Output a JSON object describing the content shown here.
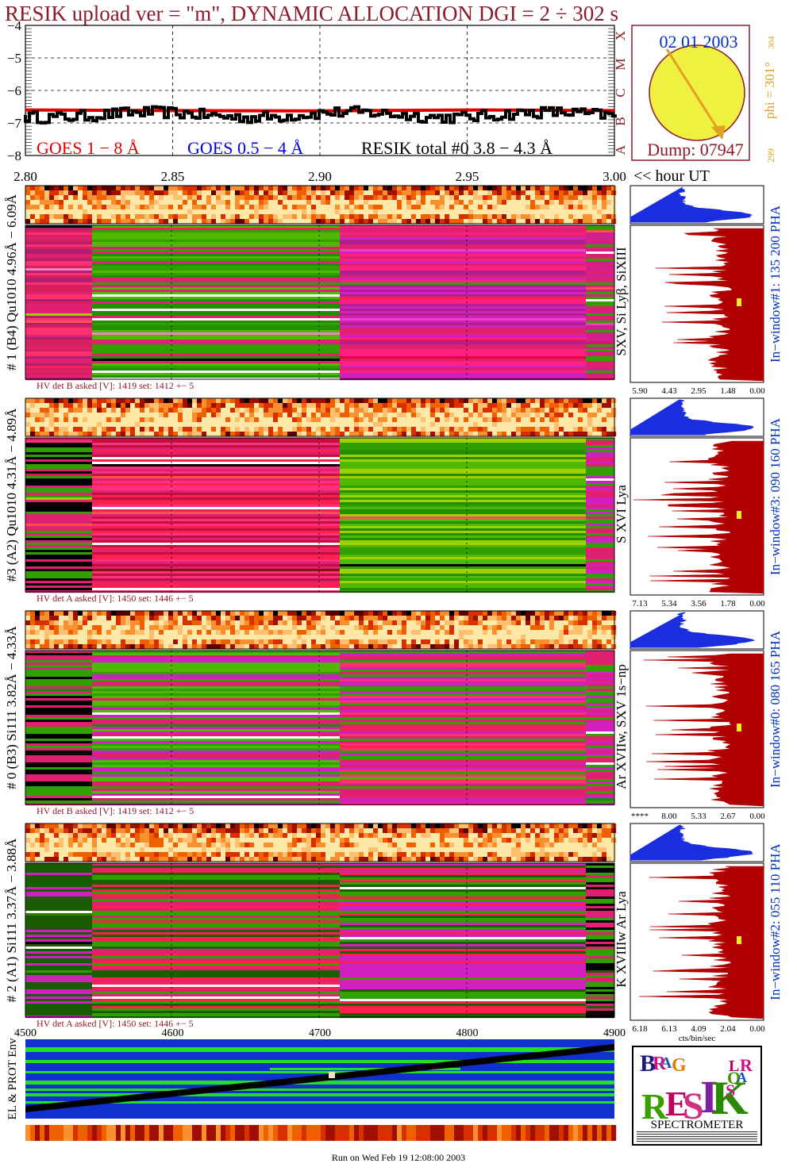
{
  "title": "RESIK upload ver = \"m\", DYNAMIC ALLOCATION  DGI =   2 ÷ 302 s",
  "colors": {
    "title": "#8b1a2b",
    "goes_long": "#e00000",
    "goes_short": "#0000e0",
    "resik": "#000000",
    "spectrum": "#b00000",
    "pha": "#1a2ee0",
    "sun": "#f0f040",
    "sun_label": "#0030c0",
    "orange": "#e0a020"
  },
  "lightcurve": {
    "yticks": [
      "−4",
      "−5",
      "−6",
      "−7",
      "−8"
    ],
    "xticks": [
      "2.80",
      "2.85",
      "2.90",
      "2.95",
      "3.00"
    ],
    "x_axis_suffix": "<< hour UT",
    "legend_goes_long": "GOES 1 − 8 Å",
    "legend_goes_short": "GOES 0.5 − 4 Å",
    "legend_resik": "RESIK total #0  3.8 − 4.3 Å",
    "goes_classes": [
      "X",
      "M",
      "C",
      "B",
      "A"
    ]
  },
  "chart_data": {
    "type": "line",
    "title": "RESIK upload ver = \"m\", DYNAMIC ALLOCATION  DGI =   2 ÷ 302 s",
    "xlabel": "<< hour UT",
    "ylabel": "",
    "xlim": [
      2.8,
      3.0
    ],
    "ylim": [
      -8,
      -4
    ],
    "grid": true,
    "legend": "bottom",
    "series": [
      {
        "name": "GOES 1 − 8 Å",
        "x": [
          2.8,
          2.85,
          2.9,
          2.95,
          3.0
        ],
        "values": [
          -6.6,
          -6.62,
          -6.63,
          -6.6,
          -6.62
        ]
      },
      {
        "name": "RESIK total #0  3.8 − 4.3 Å",
        "x": [
          2.8,
          2.825,
          2.85,
          2.875,
          2.9,
          2.925,
          2.95,
          2.975,
          3.0
        ],
        "values": [
          -6.7,
          -6.8,
          -6.75,
          -6.85,
          -6.8,
          -6.75,
          -6.8,
          -6.75,
          -6.7
        ]
      }
    ]
  },
  "sun": {
    "date": "02 01 2003",
    "dump": "Dump: 07947",
    "phi": "phi = 301°",
    "phi_sub": "304",
    "phi_low": "299"
  },
  "channels": [
    {
      "label": "# 1 (B4) Qu1010 4.96Å − 6.09Å",
      "lines": "SXV, Si Lyβ, SiXIII",
      "hv": "HV det B asked [V]:  1419 set:  1412 +−    5",
      "window": "In−window#1:  135 200 PHA",
      "xticks": [
        "5.90",
        "4.43",
        "2.95",
        "1.48",
        "0.00"
      ]
    },
    {
      "label": "#3 (A2) Qu1010  4.31Å − 4.89Å",
      "lines": "S XVI Lya",
      "hv": "HV det A asked [V]:  1450 set:  1446 +−    5",
      "window": "In−window#3:  090 160 PHA",
      "xticks": [
        "7.13",
        "5.34",
        "3.56",
        "1.78",
        "0.00"
      ]
    },
    {
      "label": "# 0 (B3) Si111  3.82Å − 4.33Å",
      "lines": "Ar XVIIw,  SXV 1s−np",
      "hv": "HV det B asked [V]:  1419 set:  1412 +−    5",
      "window": "In−window#0:  080 165 PHA",
      "xticks": [
        "****",
        "8.00",
        "5.33",
        "2.67",
        "0.00"
      ]
    },
    {
      "label": "# 2 (A1) Si111  3.37Å − 3.88Å",
      "lines": "K XVIIIw  Ar Lya",
      "hv": "HV det A asked [V]:  1450 set:  1446 +−    5",
      "window": "In−window#2:  055 110 PHA",
      "xticks": [
        "6.18",
        "6.13",
        "4.09",
        "2.04",
        "0.00"
      ],
      "xunit": "cts/bin/sec"
    }
  ],
  "env": {
    "label": "EL & PROT Env",
    "xticks": [
      "4500",
      "4600",
      "4700",
      "4800",
      "4900"
    ]
  },
  "logo": {
    "text": "SPECTROMETER",
    "letters": [
      "B",
      "R",
      "A",
      "G",
      "R",
      "E",
      "S",
      "I",
      "K",
      "S",
      "O",
      "L",
      "A",
      "R"
    ]
  },
  "footer": "Run on Wed Feb 19 12:08:00 2003"
}
